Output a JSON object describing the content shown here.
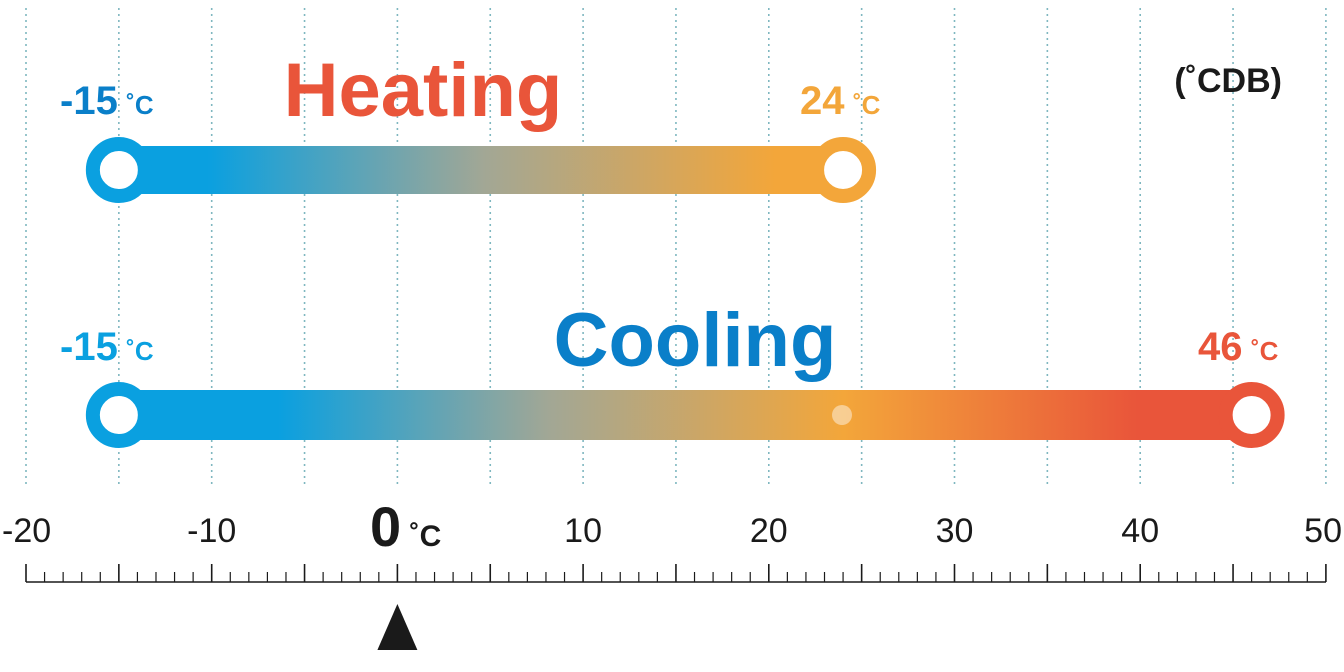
{
  "unit_label": "(˚CDB)",
  "axis": {
    "min": -20,
    "max": 50,
    "ticks": [
      "-20",
      "-10",
      "10",
      "20",
      "30",
      "40",
      "50"
    ],
    "zero_marker": {
      "value": "0",
      "unit": "˚C"
    }
  },
  "heating": {
    "title": "Heating",
    "min_value": -15,
    "max_value": 24,
    "min_label": {
      "value": "-15",
      "unit": "˚C"
    },
    "max_label": {
      "value": "24",
      "unit": "˚C"
    }
  },
  "cooling": {
    "title": "Cooling",
    "min_value": -15,
    "max_value": 46,
    "min_label": {
      "value": "-15",
      "unit": "˚C"
    },
    "max_label": {
      "value": "46",
      "unit": "˚C"
    }
  },
  "colors": {
    "blue": "#0aa0e0",
    "blue_title": "#0a7fc9",
    "orange": "#f3a63a",
    "red": "#e9553a",
    "text_dark": "#1a1a1a",
    "grid": "#7fb7c0"
  }
}
